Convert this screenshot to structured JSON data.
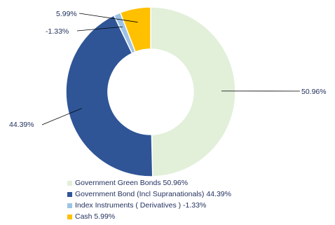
{
  "chart_data": {
    "type": "pie",
    "donut": true,
    "slices": [
      {
        "label": "Government Green Bonds",
        "value": 50.96,
        "value_label": "50.96%",
        "legend": "Government Green Bonds 50.96%",
        "color": "#e2efd9"
      },
      {
        "label": "Government Bond (Incl Supranationals)",
        "value": 44.39,
        "value_label": "44.39%",
        "legend": "Government Bond (Incl Supranationals) 44.39%",
        "color": "#2f5597"
      },
      {
        "label": "Index Instruments ( Derivatives )",
        "value": -1.33,
        "value_label": "-1.33%",
        "legend": "Index Instruments ( Derivatives ) -1.33%",
        "color": "#9dc3e6"
      },
      {
        "label": "Cash",
        "value": 5.99,
        "value_label": "5.99%",
        "legend": "Cash 5.99%",
        "color": "#ffc000"
      }
    ],
    "legend_position": "bottom"
  }
}
